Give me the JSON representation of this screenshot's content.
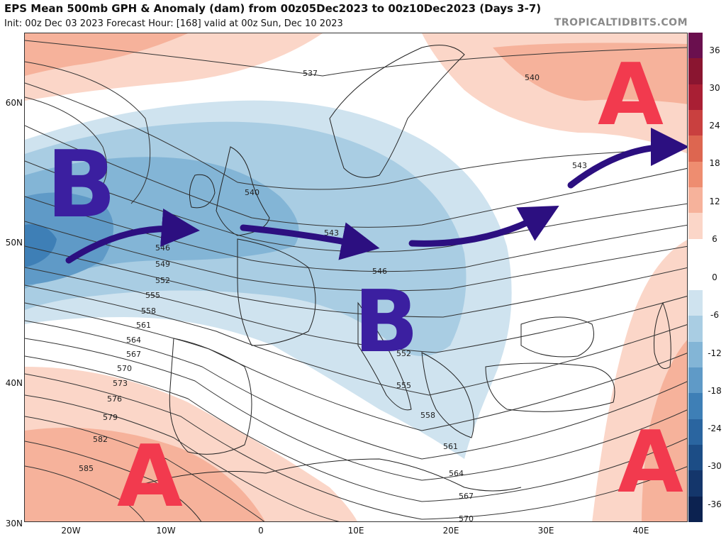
{
  "header": {
    "title": "EPS Mean 500mb GPH & Anomaly (dam) from 00z05Dec2023 to 00z10Dec2023 (Days 3-7)",
    "subtitle": "Init: 00z Dec 03 2023   Forecast Hour: [168]   valid at 00z Sun, Dec 10 2023",
    "source": "TROPICALTIDBITS.COM"
  },
  "axes": {
    "lat_labels": [
      "60N",
      "50N",
      "40N",
      "30N"
    ],
    "lon_labels": [
      "20W",
      "10W",
      "0",
      "10E",
      "20E",
      "30E",
      "40E"
    ]
  },
  "colorbar": {
    "labels": [
      "36",
      "30",
      "24",
      "18",
      "12",
      "6",
      "0",
      "-6",
      "-12",
      "-18",
      "-24",
      "-30",
      "-36"
    ],
    "colors": [
      "#6a0f4e",
      "#8a1530",
      "#a91f34",
      "#c9403f",
      "#dd6650",
      "#ee8d70",
      "#f6b29b",
      "#fbd6c8",
      "#ffffff",
      "#ffffff",
      "#cfe3ef",
      "#a9cde3",
      "#83b5d6",
      "#5f9ac7",
      "#3e7fb6",
      "#2a65a0",
      "#1c4d86",
      "#14366b",
      "#0c2250"
    ]
  },
  "contours": {
    "labels": [
      "537",
      "540",
      "540",
      "543",
      "543",
      "546",
      "546",
      "549",
      "552",
      "552",
      "555",
      "555",
      "558",
      "558",
      "561",
      "561",
      "564",
      "564",
      "567",
      "567",
      "570",
      "570",
      "573",
      "576",
      "579",
      "582",
      "585"
    ]
  },
  "annotations": {
    "low_letter": "B",
    "high_letter": "A",
    "low_color": "#3b1fa0",
    "high_color": "#f23a4e",
    "arrow_color": "#2c0f80"
  }
}
